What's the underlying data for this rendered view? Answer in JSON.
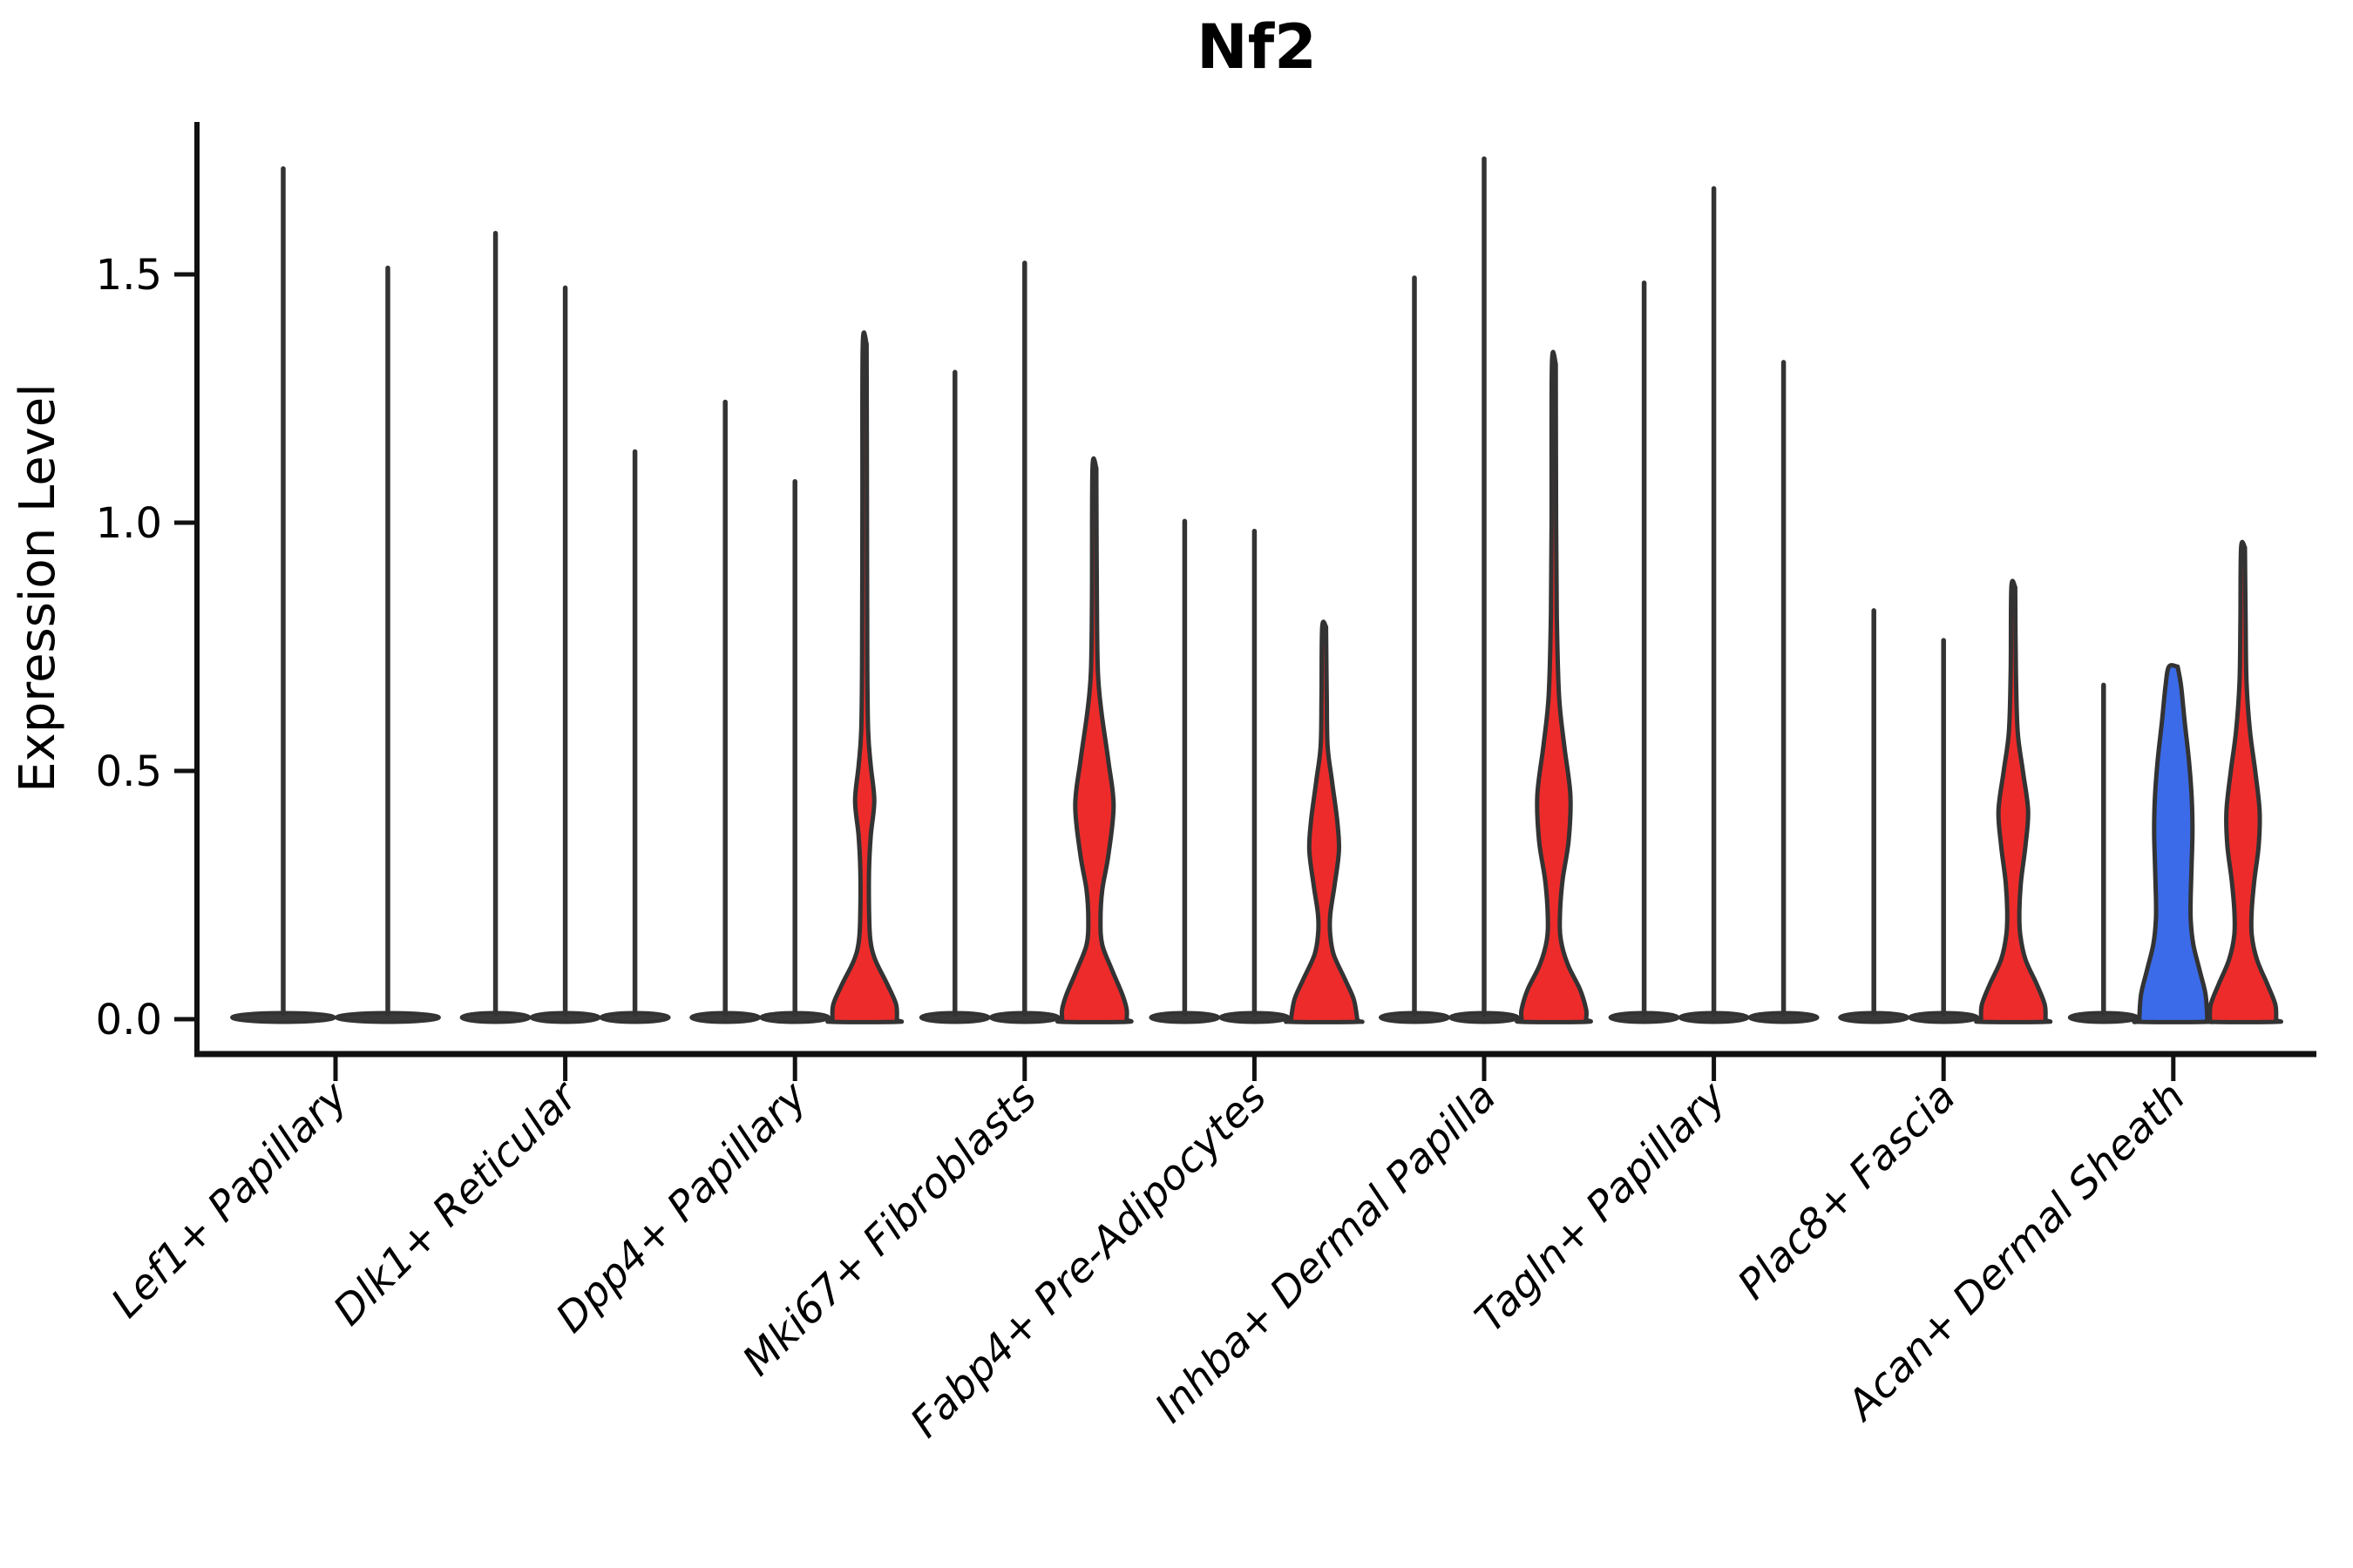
{
  "title": "Nf2",
  "ylabel": "Expression Level",
  "colors": {
    "red": "#ee2b2b",
    "blue": "#3b6be8",
    "outline": "#333333",
    "base_bar": "#3a3a3a",
    "axis": "#111111",
    "background": "#ffffff"
  },
  "chart_data": {
    "type": "violin",
    "title": "Nf2",
    "xlabel": "",
    "ylabel": "Expression Level",
    "ylim": [
      -0.07,
      1.81
    ],
    "grid": false,
    "legend": "none",
    "yticks": [
      {
        "value": 0.0,
        "label": "0.0"
      },
      {
        "value": 0.5,
        "label": "0.5"
      },
      {
        "value": 1.0,
        "label": "1.0"
      },
      {
        "value": 1.5,
        "label": "1.5"
      }
    ],
    "categories": [
      {
        "label": "Lef1+ Papillary",
        "violins": [
          {
            "max": 1.72,
            "fill": "none"
          },
          {
            "max": 1.52,
            "fill": "none"
          }
        ]
      },
      {
        "label": "Dlk1+ Reticular",
        "violins": [
          {
            "max": 1.59,
            "fill": "none"
          },
          {
            "max": 1.48,
            "fill": "none"
          },
          {
            "max": 1.15,
            "fill": "none"
          }
        ]
      },
      {
        "label": "Dpp4+ Papillary",
        "violins": [
          {
            "max": 1.25,
            "fill": "none"
          },
          {
            "max": 1.09,
            "fill": "none"
          },
          {
            "max": 1.36,
            "fill": "red",
            "profile": [
              [
                1.36,
                2.2
              ],
              [
                1.05,
                2.6
              ],
              [
                0.72,
                3.0
              ],
              [
                0.58,
                4.0
              ],
              [
                0.51,
                7.0
              ],
              [
                0.44,
                11.0
              ],
              [
                0.37,
                7.0
              ],
              [
                0.3,
                5.0
              ],
              [
                0.22,
                5.0
              ],
              [
                0.16,
                6.5
              ],
              [
                0.12,
                12.0
              ],
              [
                0.07,
                26.0
              ],
              [
                0.03,
                36.0
              ],
              [
                0.0,
                37.0
              ]
            ]
          }
        ]
      },
      {
        "label": "Mki67+ Fibroblasts",
        "violins": [
          {
            "max": 1.31,
            "fill": "none"
          },
          {
            "max": 1.53,
            "fill": "none"
          },
          {
            "max": 1.11,
            "fill": "red",
            "profile": [
              [
                1.11,
                2.2
              ],
              [
                0.85,
                2.8
              ],
              [
                0.7,
                4.0
              ],
              [
                0.62,
                8.0
              ],
              [
                0.52,
                16.0
              ],
              [
                0.43,
                22.0
              ],
              [
                0.33,
                16.0
              ],
              [
                0.26,
                9.0
              ],
              [
                0.2,
                7.0
              ],
              [
                0.15,
                9.0
              ],
              [
                0.1,
                20.0
              ],
              [
                0.05,
                32.0
              ],
              [
                0.02,
                37.0
              ],
              [
                0.0,
                37.0
              ]
            ]
          }
        ]
      },
      {
        "label": "Fabp4+ Pre-Adipocytes",
        "violins": [
          {
            "max": 1.01,
            "fill": "none"
          },
          {
            "max": 0.99,
            "fill": "none"
          },
          {
            "max": 0.79,
            "fill": "red",
            "profile": [
              [
                0.79,
                2.2
              ],
              [
                0.65,
                3.0
              ],
              [
                0.55,
                4.0
              ],
              [
                0.48,
                9.0
              ],
              [
                0.4,
                15.0
              ],
              [
                0.34,
                17.0
              ],
              [
                0.27,
                12.0
              ],
              [
                0.21,
                7.0
              ],
              [
                0.17,
                7.0
              ],
              [
                0.13,
                11.0
              ],
              [
                0.08,
                24.0
              ],
              [
                0.04,
                34.0
              ],
              [
                0.0,
                38.0
              ]
            ]
          }
        ]
      },
      {
        "label": "Inhba+ Dermal Papilla",
        "violins": [
          {
            "max": 1.5,
            "fill": "none"
          },
          {
            "max": 1.74,
            "fill": "none"
          },
          {
            "max": 1.32,
            "fill": "red",
            "profile": [
              [
                1.32,
                2.2
              ],
              [
                1.0,
                2.6
              ],
              [
                0.8,
                3.5
              ],
              [
                0.65,
                6.0
              ],
              [
                0.55,
                12.0
              ],
              [
                0.45,
                19.0
              ],
              [
                0.36,
                17.0
              ],
              [
                0.28,
                10.0
              ],
              [
                0.21,
                7.0
              ],
              [
                0.16,
                8.0
              ],
              [
                0.11,
                16.0
              ],
              [
                0.06,
                30.0
              ],
              [
                0.02,
                37.0
              ],
              [
                0.0,
                37.0
              ]
            ]
          }
        ]
      },
      {
        "label": "Tagln+ Papillary",
        "violins": [
          {
            "max": 1.49,
            "fill": "none"
          },
          {
            "max": 1.68,
            "fill": "none"
          },
          {
            "max": 1.33,
            "fill": "none"
          }
        ]
      },
      {
        "label": "Plac8+ Fascia",
        "violins": [
          {
            "max": 0.83,
            "fill": "none"
          },
          {
            "max": 0.77,
            "fill": "none"
          },
          {
            "max": 0.87,
            "fill": "red",
            "profile": [
              [
                0.87,
                2.2
              ],
              [
                0.7,
                3.0
              ],
              [
                0.58,
                5.0
              ],
              [
                0.5,
                11.0
              ],
              [
                0.42,
                17.0
              ],
              [
                0.35,
                14.0
              ],
              [
                0.28,
                9.0
              ],
              [
                0.22,
                7.0
              ],
              [
                0.17,
                8.0
              ],
              [
                0.12,
                14.0
              ],
              [
                0.07,
                27.0
              ],
              [
                0.03,
                36.0
              ],
              [
                0.0,
                37.0
              ]
            ]
          }
        ]
      },
      {
        "label": "Acan+ Dermal Sheath",
        "violins": [
          {
            "max": 0.68,
            "fill": "none"
          },
          {
            "max": 0.71,
            "fill": "blue",
            "profile": [
              [
                0.71,
                5.0
              ],
              [
                0.67,
                9.0
              ],
              [
                0.6,
                13.0
              ],
              [
                0.52,
                18.0
              ],
              [
                0.45,
                21.0
              ],
              [
                0.38,
                22.0
              ],
              [
                0.31,
                21.0
              ],
              [
                0.25,
                20.0
              ],
              [
                0.2,
                20.0
              ],
              [
                0.15,
                23.0
              ],
              [
                0.1,
                30.0
              ],
              [
                0.05,
                37.0
              ],
              [
                0.0,
                39.0
              ]
            ]
          },
          {
            "max": 0.95,
            "fill": "red",
            "profile": [
              [
                0.95,
                2.2
              ],
              [
                0.8,
                3.0
              ],
              [
                0.68,
                4.0
              ],
              [
                0.58,
                8.0
              ],
              [
                0.5,
                14.0
              ],
              [
                0.42,
                19.0
              ],
              [
                0.35,
                18.0
              ],
              [
                0.28,
                13.0
              ],
              [
                0.22,
                10.0
              ],
              [
                0.17,
                10.0
              ],
              [
                0.12,
                16.0
              ],
              [
                0.07,
                28.0
              ],
              [
                0.03,
                37.0
              ],
              [
                0.0,
                38.0
              ]
            ]
          }
        ]
      }
    ]
  }
}
